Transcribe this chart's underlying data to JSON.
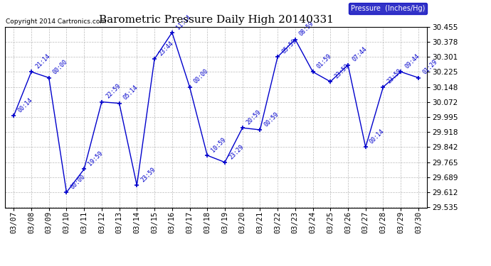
{
  "title": "Barometric Pressure Daily High 20140331",
  "copyright": "Copyright 2014 Cartronics.com",
  "legend_label": "Pressure  (Inches/Hg)",
  "dates": [
    "03/07",
    "03/08",
    "03/09",
    "03/10",
    "03/11",
    "03/12",
    "03/13",
    "03/14",
    "03/15",
    "03/16",
    "03/17",
    "03/18",
    "03/19",
    "03/20",
    "03/21",
    "03/22",
    "03/23",
    "03/24",
    "03/25",
    "03/26",
    "03/27",
    "03/28",
    "03/29",
    "03/30"
  ],
  "values": [
    30.001,
    30.225,
    30.195,
    29.612,
    29.73,
    30.072,
    30.065,
    29.648,
    30.29,
    30.425,
    30.148,
    29.8,
    29.765,
    29.94,
    29.93,
    30.301,
    30.39,
    30.225,
    30.175,
    30.26,
    29.842,
    30.148,
    30.225,
    30.195
  ],
  "annotations": [
    "00:14",
    "21:14",
    "00:00",
    "00:00",
    "19:59",
    "22:59",
    "05:14",
    "23:59",
    "23:44",
    "11:14",
    "00:00",
    "10:59",
    "23:29",
    "20:59",
    "00:59",
    "05:59",
    "08:59",
    "01:59",
    "23:59",
    "07:44",
    "00:14",
    "23:59",
    "09:44",
    "01:29"
  ],
  "line_color": "#0000cc",
  "marker_color": "#0000cc",
  "bg_color": "#ffffff",
  "grid_color": "#aaaaaa",
  "ylim_min": 29.535,
  "ylim_max": 30.455,
  "yticks": [
    29.535,
    29.612,
    29.689,
    29.765,
    29.842,
    29.918,
    29.995,
    30.072,
    30.148,
    30.225,
    30.301,
    30.378,
    30.455
  ],
  "title_fontsize": 11,
  "annotation_fontsize": 6,
  "tick_fontsize": 7.5,
  "legend_fontsize": 7,
  "copyright_fontsize": 6.5
}
